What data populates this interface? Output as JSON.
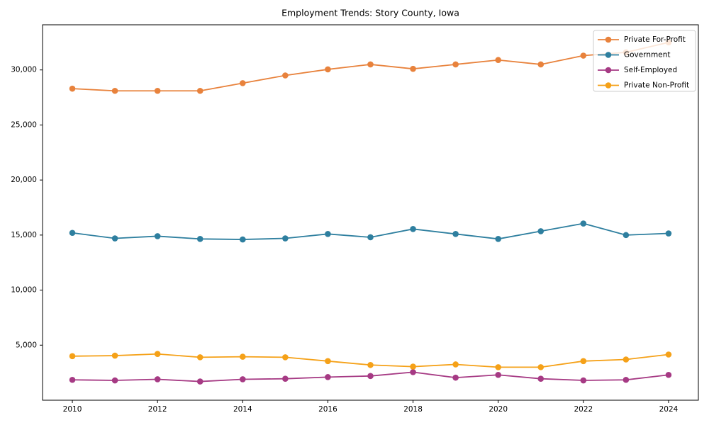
{
  "figure": {
    "background": "#ffffff",
    "text_color": "#000000",
    "spine_color": "#000000"
  },
  "chart_data": {
    "type": "line",
    "title": "Employment Trends: Story County, Iowa",
    "xlabel": "",
    "ylabel": "",
    "grid": false,
    "marker": "circle",
    "legend_position": "upper right",
    "xlim": [
      2009.3,
      2024.7
    ],
    "ylim": [
      0,
      34100
    ],
    "x": [
      2010,
      2011,
      2012,
      2013,
      2014,
      2015,
      2016,
      2017,
      2018,
      2019,
      2020,
      2021,
      2022,
      2023,
      2024
    ],
    "x_tick_values": [
      2010,
      2012,
      2014,
      2016,
      2018,
      2020,
      2022,
      2024
    ],
    "x_tick_labels": [
      "2010",
      "2012",
      "2014",
      "2016",
      "2018",
      "2020",
      "2022",
      "2024"
    ],
    "y_tick_values": [
      5000,
      10000,
      15000,
      20000,
      25000,
      30000
    ],
    "y_tick_labels": [
      "5,000",
      "10,000",
      "15,000",
      "20,000",
      "25,000",
      "30,000"
    ],
    "series": [
      {
        "name": "Private For-Profit",
        "color": "#e8823c",
        "values": [
          28300,
          28100,
          28100,
          28100,
          28800,
          29500,
          30050,
          30500,
          30100,
          30500,
          30900,
          30500,
          31300,
          31600,
          32500
        ]
      },
      {
        "name": "Government",
        "color": "#2e7f9f",
        "values": [
          15200,
          14700,
          14900,
          14650,
          14600,
          14700,
          15100,
          14800,
          15550,
          15100,
          14650,
          15350,
          16050,
          15000,
          15150
        ]
      },
      {
        "name": "Self-Employed",
        "color": "#a63a84",
        "values": [
          1850,
          1800,
          1900,
          1700,
          1900,
          1950,
          2100,
          2200,
          2550,
          2050,
          2300,
          1950,
          1800,
          1850,
          2300
        ]
      },
      {
        "name": "Private Non-Profit",
        "color": "#f5a118",
        "values": [
          4000,
          4050,
          4200,
          3900,
          3950,
          3900,
          3550,
          3200,
          3050,
          3250,
          3000,
          3000,
          3550,
          3700,
          4150
        ]
      }
    ]
  }
}
